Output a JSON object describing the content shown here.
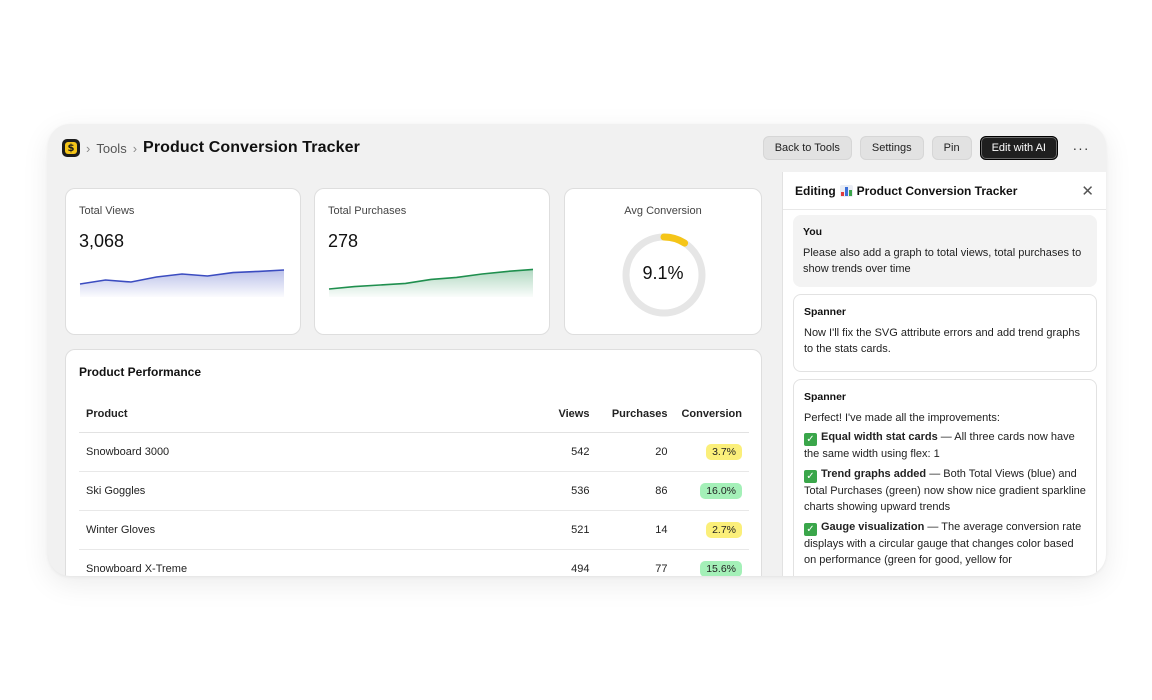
{
  "breadcrumb": {
    "section": "Tools",
    "title": "Product Conversion Tracker"
  },
  "actions": {
    "back": "Back to Tools",
    "settings": "Settings",
    "pin": "Pin",
    "edit_ai": "Edit with AI",
    "more": "···"
  },
  "stats": {
    "views": {
      "label": "Total Views",
      "value": "3,068",
      "color": "#3b4cc0",
      "trend": [
        0.35,
        0.55,
        0.45,
        0.7,
        0.85,
        0.75,
        0.92,
        0.98,
        1.05
      ]
    },
    "purchases": {
      "label": "Total Purchases",
      "value": "278",
      "color": "#1f8f4e",
      "trend": [
        0.1,
        0.22,
        0.3,
        0.38,
        0.58,
        0.68,
        0.85,
        0.98,
        1.08
      ]
    }
  },
  "gauge": {
    "label": "Avg Conversion",
    "value_text": "9.1%",
    "fraction": 0.091,
    "color": "#f5c518"
  },
  "performance": {
    "title": "Product Performance",
    "columns": {
      "product": "Product",
      "views": "Views",
      "purchases": "Purchases",
      "conversion": "Conversion"
    },
    "rows": [
      {
        "product": "Snowboard 3000",
        "views": "542",
        "purchases": "20",
        "conversion": "3.7%",
        "color": "#fbef7a"
      },
      {
        "product": "Ski Goggles",
        "views": "536",
        "purchases": "86",
        "conversion": "16.0%",
        "color": "#a4f0b8"
      },
      {
        "product": "Winter Gloves",
        "views": "521",
        "purchases": "14",
        "conversion": "2.7%",
        "color": "#fbef7a"
      },
      {
        "product": "Snowboard X-Treme",
        "views": "494",
        "purchases": "77",
        "conversion": "15.6%",
        "color": "#a4f0b8"
      }
    ]
  },
  "panel": {
    "editing_label": "Editing",
    "title": "Product Conversion Tracker",
    "messages": [
      {
        "author": "You",
        "text": "Please also add a graph to total views, total purchases to show trends over time"
      },
      {
        "author": "Spanner",
        "text": "Now I'll fix the SVG attribute errors and add trend graphs to the stats cards."
      },
      {
        "author": "Spanner",
        "intro": "Perfect! I've made all the improvements:",
        "items": [
          {
            "bold": "Equal width stat cards",
            "text": " — All three cards now have the same width using flex: 1"
          },
          {
            "bold": "Trend graphs added",
            "text": " — Both Total Views (blue) and Total Purchases (green) now show nice gradient sparkline charts showing upward trends"
          },
          {
            "bold": "Gauge visualization",
            "text": " — The average conversion rate displays with a circular gauge that changes color based on performance (green for good, yellow for"
          }
        ]
      }
    ]
  }
}
